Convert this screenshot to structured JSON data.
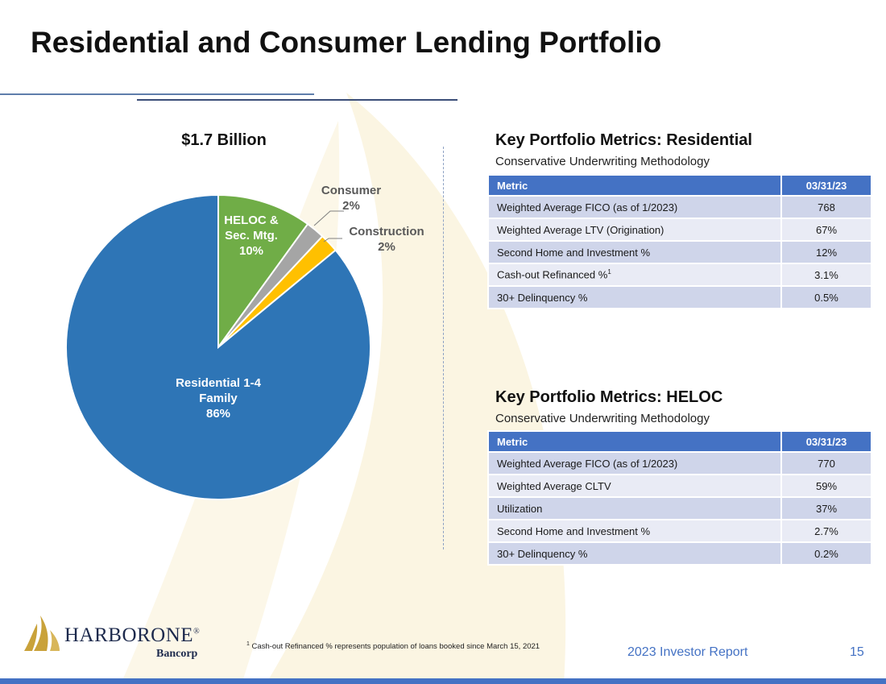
{
  "slide": {
    "title": "Residential and Consumer Lending Portfolio"
  },
  "chart_data": {
    "type": "pie",
    "title": "$1.7 Billion",
    "slices": [
      {
        "label": "HELOC & Sec. Mtg.",
        "label_lines": [
          "HELOC &",
          "Sec. Mtg."
        ],
        "value": 10,
        "display": "10%",
        "color": "#70ad47"
      },
      {
        "label": "Consumer",
        "label_lines": [
          "Consumer"
        ],
        "value": 2,
        "display": "2%",
        "color": "#a5a5a5"
      },
      {
        "label": "Construction",
        "label_lines": [
          "Construction"
        ],
        "value": 2,
        "display": "2%",
        "color": "#ffc000"
      },
      {
        "label": "Residential 1-4 Family",
        "label_lines": [
          "Residential 1-4",
          "Family"
        ],
        "value": 86,
        "display": "86%",
        "color": "#2e75b6"
      }
    ]
  },
  "residential": {
    "title": "Key Portfolio Metrics:  Residential",
    "subtitle": "Conservative Underwriting Methodology",
    "header": {
      "metric": "Metric",
      "value": "03/31/23"
    },
    "rows": [
      {
        "metric": "Weighted Average FICO (as of 1/2023)",
        "value": "768"
      },
      {
        "metric": "Weighted Average LTV (Origination)",
        "value": "67%"
      },
      {
        "metric": "Second Home and Investment %",
        "value": "12%"
      },
      {
        "metric": "Cash-out Refinanced %",
        "sup": "1",
        "value": "3.1%"
      },
      {
        "metric": "30+ Delinquency %",
        "value": "0.5%"
      }
    ]
  },
  "heloc": {
    "title": "Key Portfolio Metrics:  HELOC",
    "subtitle": "Conservative Underwriting Methodology",
    "header": {
      "metric": "Metric",
      "value": "03/31/23"
    },
    "rows": [
      {
        "metric": "Weighted Average FICO (as of 1/2023)",
        "value": "770"
      },
      {
        "metric": "Weighted Average CLTV",
        "value": "59%"
      },
      {
        "metric": "Utilization",
        "value": "37%"
      },
      {
        "metric": "Second Home and Investment %",
        "value": "2.7%"
      },
      {
        "metric": "30+ Delinquency %",
        "value": "0.2%"
      }
    ]
  },
  "footer": {
    "logo_word": "HARBORONE",
    "logo_reg": "®",
    "logo_sub": "Bancorp",
    "footnote_sup": "1",
    "footnote": "Cash-out Refinanced % represents population of loans booked since March 15, 2021",
    "report": "2023 Investor Report",
    "page": "15"
  },
  "colors": {
    "accent": "#4472c4",
    "logo_gold": "#c9a23a",
    "logo_navy": "#1d2a4d"
  }
}
